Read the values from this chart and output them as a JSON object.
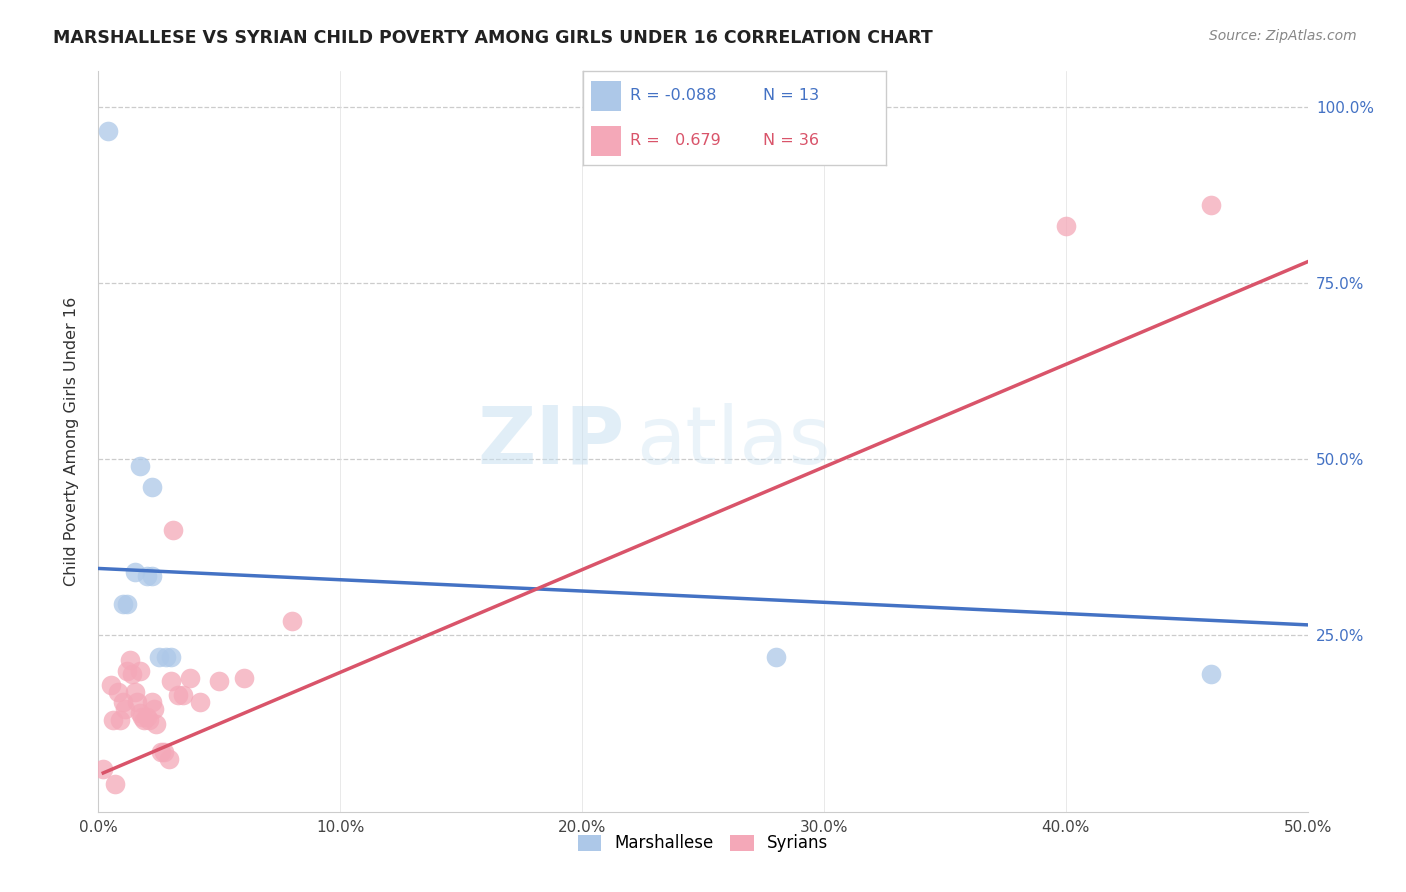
{
  "title": "MARSHALLESE VS SYRIAN CHILD POVERTY AMONG GIRLS UNDER 16 CORRELATION CHART",
  "source": "Source: ZipAtlas.com",
  "ylabel": "Child Poverty Among Girls Under 16",
  "xlim": [
    0.0,
    0.5
  ],
  "ylim": [
    0.0,
    1.05
  ],
  "xticks": [
    0.0,
    0.1,
    0.2,
    0.3,
    0.4,
    0.5
  ],
  "yticks": [
    0.25,
    0.5,
    0.75,
    1.0
  ],
  "ytick_labels": [
    "25.0%",
    "50.0%",
    "75.0%",
    "100.0%"
  ],
  "xtick_labels": [
    "0.0%",
    "10.0%",
    "20.0%",
    "30.0%",
    "40.0%",
    "50.0%"
  ],
  "legend_blue_r": "-0.088",
  "legend_blue_n": "13",
  "legend_pink_r": "0.679",
  "legend_pink_n": "36",
  "blue_color": "#adc8e8",
  "pink_color": "#f4a8b8",
  "blue_line_color": "#4472c4",
  "pink_line_color": "#d9546a",
  "watermark_zip": "ZIP",
  "watermark_atlas": "atlas",
  "marshallese_points": [
    [
      0.004,
      0.965
    ],
    [
      0.01,
      0.295
    ],
    [
      0.012,
      0.295
    ],
    [
      0.015,
      0.34
    ],
    [
      0.017,
      0.49
    ],
    [
      0.02,
      0.335
    ],
    [
      0.022,
      0.46
    ],
    [
      0.022,
      0.335
    ],
    [
      0.025,
      0.22
    ],
    [
      0.028,
      0.22
    ],
    [
      0.03,
      0.22
    ],
    [
      0.28,
      0.22
    ],
    [
      0.46,
      0.195
    ]
  ],
  "syrian_points": [
    [
      0.002,
      0.06
    ],
    [
      0.005,
      0.18
    ],
    [
      0.006,
      0.13
    ],
    [
      0.007,
      0.04
    ],
    [
      0.008,
      0.17
    ],
    [
      0.009,
      0.13
    ],
    [
      0.01,
      0.155
    ],
    [
      0.011,
      0.145
    ],
    [
      0.012,
      0.2
    ],
    [
      0.013,
      0.215
    ],
    [
      0.014,
      0.195
    ],
    [
      0.015,
      0.17
    ],
    [
      0.016,
      0.155
    ],
    [
      0.017,
      0.14
    ],
    [
      0.017,
      0.2
    ],
    [
      0.018,
      0.135
    ],
    [
      0.019,
      0.13
    ],
    [
      0.02,
      0.135
    ],
    [
      0.021,
      0.13
    ],
    [
      0.022,
      0.155
    ],
    [
      0.023,
      0.145
    ],
    [
      0.024,
      0.125
    ],
    [
      0.026,
      0.085
    ],
    [
      0.027,
      0.085
    ],
    [
      0.029,
      0.075
    ],
    [
      0.03,
      0.185
    ],
    [
      0.031,
      0.4
    ],
    [
      0.033,
      0.165
    ],
    [
      0.035,
      0.165
    ],
    [
      0.038,
      0.19
    ],
    [
      0.042,
      0.155
    ],
    [
      0.05,
      0.185
    ],
    [
      0.06,
      0.19
    ],
    [
      0.08,
      0.27
    ],
    [
      0.4,
      0.83
    ],
    [
      0.46,
      0.86
    ]
  ],
  "blue_line_x": [
    0.0,
    0.5
  ],
  "blue_line_y": [
    0.345,
    0.265
  ],
  "pink_line_x": [
    0.002,
    0.5
  ],
  "pink_line_y": [
    0.055,
    0.78
  ]
}
